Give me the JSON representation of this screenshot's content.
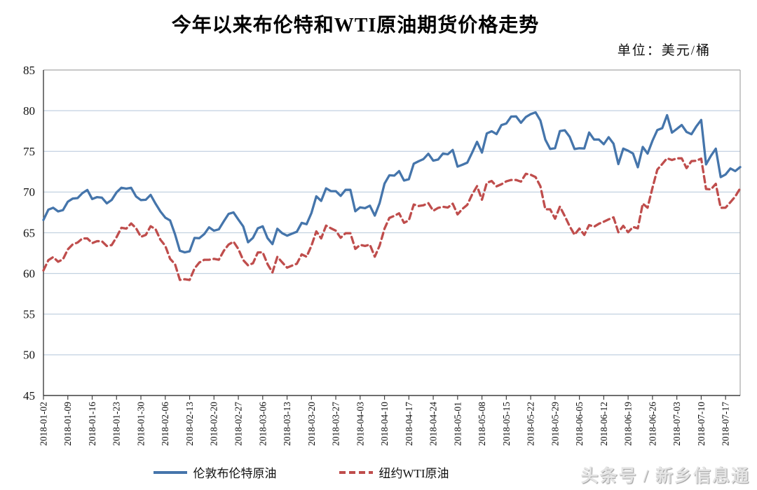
{
  "title": "今年以来布伦特和WTI原油期货价格走势",
  "unit_label": "单位：美元/桶",
  "watermark": "头条号 / 新乡信息通",
  "legend": {
    "brent_label": "伦敦布伦特原油",
    "wti_label": "纽约WTI原油"
  },
  "colors": {
    "brent_line": "#4575ab",
    "wti_line": "#bf4d4c",
    "gridline": "#c2d1e0",
    "plot_border": "#a6a6a6",
    "axis_line": "#3f3f3f",
    "text": "#111111"
  },
  "chart_data": {
    "type": "line",
    "title": "今年以来布伦特和WTI原油期货价格走势",
    "ylabel": "美元/桶",
    "ylim": [
      45,
      85
    ],
    "yticks": [
      45,
      50,
      55,
      60,
      65,
      70,
      75,
      80,
      85
    ],
    "grid": true,
    "legend_position": "bottom",
    "x_tick_labels": [
      "2018-01-02",
      "2018-01-09",
      "2018-01-16",
      "2018-01-23",
      "2018-01-30",
      "2018-02-06",
      "2018-02-13",
      "2018-02-20",
      "2018-02-27",
      "2018-03-06",
      "2018-03-13",
      "2018-03-20",
      "2018-03-27",
      "2018-04-03",
      "2018-04-10",
      "2018-04-17",
      "2018-04-24",
      "2018-05-01",
      "2018-05-08",
      "2018-05-15",
      "2018-05-22",
      "2018-05-29",
      "2018-06-05",
      "2018-06-12",
      "2018-06-19",
      "2018-06-26",
      "2018-07-03",
      "2018-07-10",
      "2018-07-17"
    ],
    "points_per_tick": 5,
    "series": [
      {
        "name": "伦敦布伦特原油",
        "style": "solid",
        "color": "#4575ab",
        "values": [
          66.57,
          67.84,
          68.07,
          67.62,
          67.78,
          68.82,
          69.2,
          69.26,
          69.87,
          70.26,
          69.15,
          69.38,
          69.31,
          68.61,
          69.03,
          69.96,
          70.53,
          70.42,
          70.52,
          69.46,
          69.02,
          69.05,
          69.65,
          68.58,
          67.62,
          66.86,
          66.51,
          64.81,
          62.79,
          62.59,
          62.72,
          64.36,
          64.33,
          64.84,
          65.67,
          65.25,
          65.42,
          66.39,
          67.31,
          67.5,
          66.63,
          65.78,
          63.83,
          64.37,
          65.54,
          65.79,
          64.34,
          63.61,
          65.49,
          64.95,
          64.64,
          64.89,
          65.12,
          66.21,
          66.05,
          67.42,
          69.47,
          68.91,
          70.45,
          70.12,
          70.11,
          69.53,
          70.27,
          70.27,
          67.64,
          68.12,
          68.02,
          68.33,
          67.11,
          68.65,
          71.04,
          72.06,
          72.02,
          72.58,
          71.42,
          71.58,
          73.48,
          73.78,
          74.06,
          74.71,
          73.86,
          74.0,
          74.74,
          74.64,
          75.17,
          73.13,
          73.36,
          73.62,
          74.87,
          76.17,
          74.85,
          77.21,
          77.47,
          77.12,
          78.23,
          78.43,
          79.28,
          79.3,
          78.51,
          79.22,
          79.57,
          79.8,
          78.79,
          76.44,
          75.3,
          75.39,
          77.5,
          77.59,
          76.79,
          75.29,
          75.38,
          75.36,
          77.32,
          76.46,
          76.46,
          75.88,
          76.74,
          75.94,
          73.44,
          75.34,
          75.08,
          74.74,
          73.05,
          75.55,
          74.73,
          76.31,
          77.62,
          77.85,
          79.44,
          77.3,
          77.76,
          78.24,
          77.39,
          77.11,
          78.07,
          78.86,
          73.4,
          74.45,
          75.33,
          71.84,
          72.16,
          72.9,
          72.58,
          73.07
        ]
      },
      {
        "name": "纽约WTI原油",
        "style": "dashed",
        "color": "#bf4d4c",
        "values": [
          60.37,
          61.63,
          62.01,
          61.44,
          61.73,
          62.96,
          63.57,
          63.8,
          64.3,
          64.3,
          63.73,
          63.97,
          63.95,
          63.37,
          63.49,
          64.47,
          65.61,
          65.51,
          66.14,
          65.56,
          64.5,
          64.73,
          65.8,
          65.45,
          64.15,
          63.39,
          61.79,
          61.15,
          59.2,
          59.29,
          59.19,
          60.6,
          61.34,
          61.68,
          61.68,
          61.79,
          61.68,
          62.77,
          63.55,
          63.91,
          63.01,
          61.64,
          60.99,
          61.25,
          62.57,
          62.6,
          61.15,
          60.12,
          62.04,
          61.36,
          60.71,
          60.96,
          61.19,
          62.34,
          62.06,
          63.4,
          65.17,
          64.3,
          65.88,
          65.55,
          65.25,
          64.38,
          64.94,
          64.94,
          63.01,
          63.51,
          63.37,
          63.54,
          62.06,
          63.42,
          65.51,
          66.82,
          67.07,
          67.39,
          66.22,
          66.52,
          68.47,
          68.29,
          68.38,
          68.64,
          67.7,
          68.05,
          68.19,
          68.1,
          68.57,
          67.25,
          67.93,
          68.43,
          69.72,
          70.73,
          69.06,
          71.14,
          71.36,
          70.7,
          70.96,
          71.31,
          71.49,
          71.49,
          71.28,
          72.24,
          72.13,
          71.84,
          70.71,
          67.88,
          67.88,
          66.73,
          68.21,
          67.04,
          65.81,
          64.75,
          65.52,
          64.73,
          65.95,
          65.74,
          66.1,
          66.36,
          66.64,
          66.89,
          65.06,
          65.85,
          65.07,
          65.71,
          65.54,
          68.58,
          68.08,
          70.53,
          72.76,
          73.45,
          74.15,
          73.94,
          74.14,
          74.14,
          72.94,
          73.8,
          73.85,
          74.11,
          70.38,
          70.33,
          71.01,
          68.06,
          68.08,
          68.76,
          69.46,
          70.46
        ]
      }
    ]
  }
}
